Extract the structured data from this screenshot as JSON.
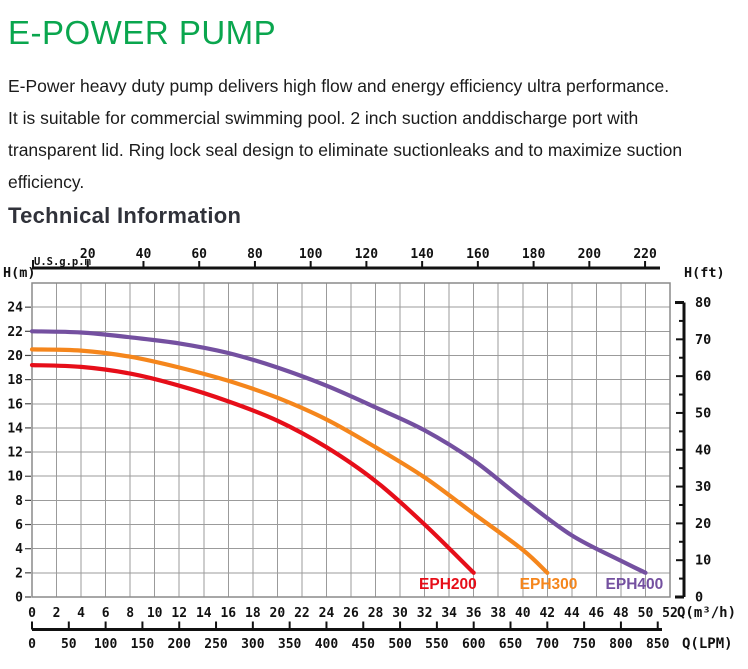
{
  "page": {
    "title": "E-POWER PUMP",
    "description_lines": [
      "E-Power heavy duty pump delivers high flow and energy efficiency ultra performance.",
      "It is suitable for commercial swimming pool. 2 inch suction anddischarge port with",
      "transparent lid. Ring lock seal design to eliminate suctionleaks and to maximize suction",
      "efficiency."
    ],
    "section_heading": "Technical Information"
  },
  "colors": {
    "title_green": "#0aa64e",
    "heading_dark": "#30323a",
    "body_text": "#1b1b1b",
    "axis_black": "#111111",
    "grid_gray": "#9b9b9b",
    "curve_red": "#e60e19",
    "curve_orange": "#f5861c",
    "curve_purple": "#7450a0"
  },
  "chart_data": {
    "type": "line",
    "title": "",
    "grid": true,
    "x_axis_m3h": {
      "label": "Q(m³/h)",
      "min": 0,
      "max": 52,
      "tick_step": 2
    },
    "x_axis_lpm": {
      "label": "Q(LPM)",
      "min": 0,
      "max": 850,
      "tick_step": 50
    },
    "x_axis_gpm": {
      "label": "U.S.g.p.m",
      "ticks": [
        20,
        40,
        60,
        80,
        100,
        120,
        140,
        160,
        180,
        200,
        220
      ]
    },
    "y_axis_m": {
      "label": "H(m)",
      "min": 0,
      "max": 24,
      "tick_step": 2,
      "grid_max": 26
    },
    "y_axis_ft": {
      "label": "H(ft)",
      "min": 0,
      "max": 80,
      "tick_step": 10,
      "minor_tick_step": 5
    },
    "series": [
      {
        "name": "EPH200",
        "color": "#e60e19",
        "label_q": 33.9,
        "points": [
          [
            0,
            19.2
          ],
          [
            4,
            19.05
          ],
          [
            8,
            18.5
          ],
          [
            12,
            17.5
          ],
          [
            16,
            16.2
          ],
          [
            20,
            14.6
          ],
          [
            24,
            12.4
          ],
          [
            28,
            9.6
          ],
          [
            32,
            6.0
          ],
          [
            36,
            2.0
          ]
        ]
      },
      {
        "name": "EPH300",
        "color": "#f5861c",
        "label_q": 42.1,
        "points": [
          [
            0,
            20.5
          ],
          [
            4,
            20.4
          ],
          [
            8,
            19.9
          ],
          [
            12,
            19.0
          ],
          [
            16,
            17.9
          ],
          [
            20,
            16.5
          ],
          [
            24,
            14.7
          ],
          [
            28,
            12.4
          ],
          [
            32,
            9.9
          ],
          [
            36,
            6.9
          ],
          [
            40,
            3.9
          ],
          [
            42,
            2.0
          ]
        ]
      },
      {
        "name": "EPH400",
        "color": "#7450a0",
        "label_q": 49.1,
        "points": [
          [
            0,
            22.0
          ],
          [
            4,
            21.9
          ],
          [
            8,
            21.5
          ],
          [
            12,
            21.0
          ],
          [
            16,
            20.2
          ],
          [
            20,
            19.0
          ],
          [
            24,
            17.5
          ],
          [
            28,
            15.7
          ],
          [
            32,
            13.8
          ],
          [
            36,
            11.3
          ],
          [
            40,
            8.1
          ],
          [
            44,
            5.1
          ],
          [
            48,
            3.0
          ],
          [
            50,
            2.0
          ]
        ]
      }
    ]
  }
}
